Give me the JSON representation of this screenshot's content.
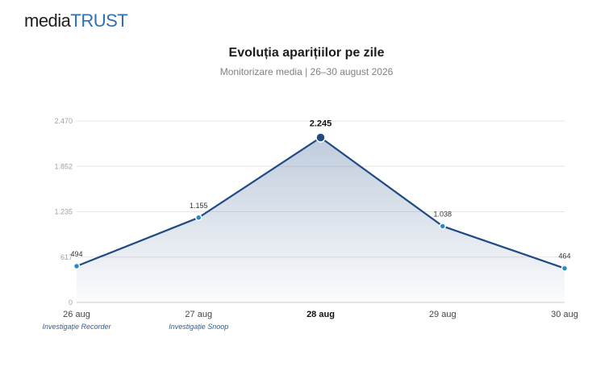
{
  "brand": {
    "part1": "media",
    "part2": "TRUST"
  },
  "header": {
    "title": "Evoluția aparițiilor pe zile",
    "subtitle": "Monitorizare media | 26–30 august 2026"
  },
  "colors": {
    "line": "#1f4a84",
    "point": "#2b87c8",
    "peak_point": "#1f4a84",
    "area_top": "#1f4a84",
    "grid": "#e6e6e6"
  },
  "chart_data": {
    "type": "area",
    "title": "Evoluția aparițiilor pe zile",
    "subtitle": "Monitorizare media | 26–30 august 2026",
    "categories": [
      "26 aug",
      "27 aug",
      "28 aug",
      "29 aug",
      "30 aug"
    ],
    "values": [
      494,
      1155,
      2245,
      1038,
      464
    ],
    "data_labels": [
      "494",
      "1.155",
      "2.245",
      "1.038",
      "464"
    ],
    "highlight_index": 2,
    "ylim": [
      0,
      2470
    ],
    "yticks": [
      0,
      617,
      1235,
      1852,
      2470
    ],
    "ytick_labels": [
      "0",
      "617",
      "1.235",
      "1.852",
      "2.470"
    ],
    "grid": true,
    "legend": "none",
    "annotations": [
      {
        "category": "26 aug",
        "text": "Investigație Recorder"
      },
      {
        "category": "27 aug",
        "text": "Investigație Snoop"
      }
    ]
  }
}
